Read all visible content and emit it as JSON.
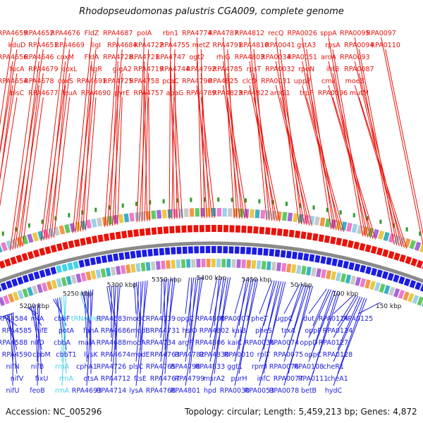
{
  "title": "Rhodopseudomonas palustris CGA009, complete genome",
  "footer": {
    "accession": "Accession: NC_005296",
    "topology": "Topology: circular; Length: 5,459,213 bp; Genes: 4,872"
  },
  "colors": {
    "forward": "#e8140c",
    "reverse": "#1c1ce0",
    "rna": "#44d2e8",
    "backbone": "#8a8a8a",
    "marker": "#2aa02a"
  },
  "ticks": [
    "5200 kbp",
    "5250 kbp",
    "5300 kbp",
    "5350 kbp",
    "5400 kbp",
    "5450 kbp",
    "50 kbp",
    "100 kbp",
    "150 kbp"
  ],
  "forward_genes": [
    "RPA4659",
    "kduD",
    "RPA4656",
    "fucA",
    "RPA4654",
    "bisC",
    "RPA4652",
    "RPA4651",
    "RPA4646",
    "RPA4679",
    "RPA4678",
    "RPA4677",
    "RPA4676",
    "RPA4669",
    "coxM",
    "coxL",
    "coxS",
    "leuA",
    "FldZ",
    "ligI",
    "FldA",
    "ligR",
    "RPA4691",
    "RPA4690",
    "RPA4687",
    "RPA4684",
    "RPA4728",
    "glgA2",
    "RPA4725",
    "pyrE",
    "polA",
    "RPA4722",
    "RPA4721",
    "RPA4719",
    "RPA4758",
    "RPA4757",
    "rbn1",
    "RPA4755",
    "RPA4747",
    "RPA4744",
    "pcaC",
    "apaG",
    "RPA4774",
    "metZ",
    "ogt2",
    "RPA4792",
    "RPA4790",
    "RPA4789",
    "RPA4787",
    "RPA4791",
    "rhlG",
    "RPA4785",
    "RPA4825",
    "RPA4823",
    "RPA4812",
    "RPA4810",
    "RPA4803",
    "rpsT",
    "clcD",
    "RPA4822",
    "recQ",
    "RPA0041",
    "RPA0034",
    "RPA0032",
    "RPA0031",
    "aroG1",
    "RPA0026",
    "gstA3",
    "RPA0051",
    "rpoN",
    "uppP",
    "trpF",
    "sppA",
    "rpsA",
    "aroA",
    "ihfB",
    "cmk",
    "RPA0096",
    "RPA0095",
    "RPA0094",
    "RPA0093",
    "RPA0087",
    "moeB",
    "mutM",
    "RPA0097",
    "RPA0110"
  ],
  "reverse_genes": [
    "RPA4584",
    "RPA4585",
    "RPA4588",
    "RPA4590",
    "nifN",
    "nifV",
    "nifU",
    "nifA",
    "nifE",
    "nifD",
    "cbbM",
    "nifB",
    "fixU",
    "feoB",
    "cbbF",
    "potA",
    "cbbA",
    "cbbT1",
    "rrnA",
    "rrnA",
    "rrnA",
    "tRNA-Ile1",
    "fahA",
    "maiA",
    "lysK",
    "cphA1",
    "otsA",
    "RPA4693",
    "RPA4683",
    "RPA4686",
    "RPA4688",
    "RPA4674",
    "RPA4726",
    "RPA4712",
    "RPA4714",
    "modC",
    "modB",
    "modA",
    "modE",
    "plsC",
    "ftsE",
    "lysA",
    "RPA4739",
    "RPA4731",
    "RPA4734",
    "RPA4763",
    "RPA4765",
    "RPA4767",
    "RPA4768",
    "opgC",
    "hslO",
    "argF",
    "RPA4782",
    "RPA4798",
    "RPA4799",
    "RPA4801",
    "RPA4800",
    "RPA4802",
    "RPA4806",
    "RPA4830",
    "RPA4833",
    "msrA2",
    "hpd",
    "RPA0007",
    "kaiB",
    "kaiC",
    "RPA0010",
    "ggt1",
    "purH",
    "RPA0030",
    "pheT",
    "pheS",
    "RPA0036",
    "rplT",
    "rpmI",
    "infC",
    "RPA0053",
    "ugpC",
    "trxA",
    "RPA0074",
    "RPA0075",
    "RPA0076",
    "RPA0077",
    "RPA0078",
    "dut",
    "oppF",
    "oppD",
    "oppC",
    "RPA0108",
    "RPA0111",
    "betB",
    "RPA0114",
    "RPA0124",
    "RPA0127",
    "RPA0128",
    "cheR1",
    "cheA1",
    "hydC",
    "RPA0125"
  ]
}
